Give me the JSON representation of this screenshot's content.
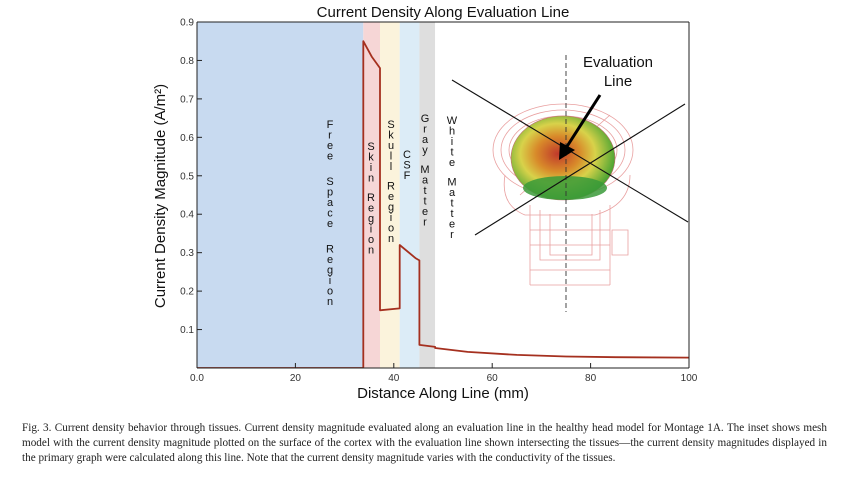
{
  "figure": {
    "caption": "Fig. 3. Current density behavior through tissues. Current density magnitude evaluated along an evaluation line in the healthy head model for Montage 1A. The inset shows mesh model with the current density magnitude plotted on the surface of the cortex with the evaluation line shown intersecting the tissues—the current density magnitudes displayed in the primary graph were calculated along this line. Note that the current density magnitude varies with the conductivity of the tissues."
  },
  "chart_data": {
    "type": "line",
    "title": "Current Density Along Evaluation Line",
    "xlabel": "Distance Along Line (mm)",
    "ylabel": "Current Density Magnitude (A/m²)",
    "xlim": [
      0,
      100
    ],
    "ylim": [
      0,
      0.9
    ],
    "x_ticks": [
      "0.0",
      "20",
      "40",
      "60",
      "80",
      "100"
    ],
    "y_ticks": [
      "0.1",
      "0.2",
      "0.3",
      "0.4",
      "0.5",
      "0.6",
      "0.7",
      "0.8",
      "0.9"
    ],
    "grid": false,
    "regions": [
      {
        "label": "Free Space Region",
        "x_start": 0,
        "x_end": 33.8,
        "color": "#c8daf0"
      },
      {
        "label": "Skin Region",
        "x_start": 33.8,
        "x_end": 37.2,
        "color": "#f6d6d6"
      },
      {
        "label": "Skull Region",
        "x_start": 37.2,
        "x_end": 41.2,
        "color": "#fbf3dc"
      },
      {
        "label": "CSF",
        "x_start": 41.2,
        "x_end": 45.2,
        "color": "#dcecf7"
      },
      {
        "label": "Gray Matter",
        "x_start": 45.2,
        "x_end": 48.4,
        "color": "#dedede"
      },
      {
        "label": "White Matter",
        "x_start": 48.4,
        "x_end": 100,
        "color": "#ffffff"
      }
    ],
    "series": [
      {
        "color": "#a5301f",
        "x": [
          0,
          33.8,
          33.8,
          35.5,
          37.2,
          37.2,
          41.2,
          41.2,
          44.5,
          45.2,
          45.2,
          48.4,
          48.4,
          55,
          65,
          75,
          85,
          100
        ],
        "y": [
          0.0,
          0.0,
          0.85,
          0.81,
          0.78,
          0.15,
          0.155,
          0.32,
          0.285,
          0.28,
          0.06,
          0.055,
          0.052,
          0.042,
          0.034,
          0.03,
          0.028,
          0.027
        ]
      }
    ],
    "inset": {
      "label": "Evaluation Line",
      "icon": "head-mesh-model-icon",
      "colors": [
        "#2e9a2e",
        "#d8d24a",
        "#c0392b"
      ]
    }
  }
}
